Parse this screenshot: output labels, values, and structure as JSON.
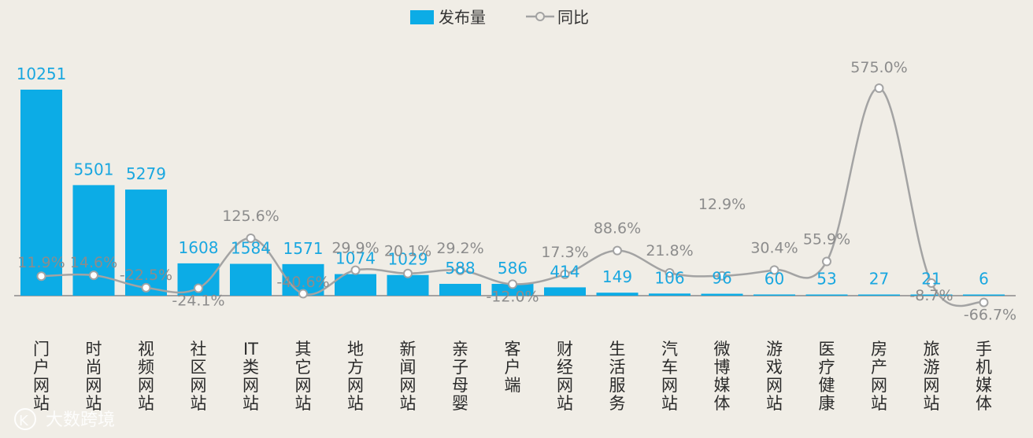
{
  "chart_data": {
    "type": "bar",
    "title": "",
    "categories": [
      "门户网站",
      "时尚网站",
      "视频网站",
      "社区网站",
      "IT类网站",
      "其它网站",
      "地方网站",
      "新闻网站",
      "亲子母婴",
      "客户端",
      "财经网站",
      "生活服务",
      "汽车网站",
      "微博媒体",
      "游戏网站",
      "医疗健康",
      "房产网站",
      "旅游网站",
      "手机媒体"
    ],
    "category_lines": [
      [
        "门",
        "户",
        "网",
        "站"
      ],
      [
        "时",
        "尚",
        "网",
        "站"
      ],
      [
        "视",
        "频",
        "网",
        "站"
      ],
      [
        "社",
        "区",
        "网",
        "站"
      ],
      [
        "IT",
        "类",
        "网",
        "站"
      ],
      [
        "其",
        "它",
        "网",
        "站"
      ],
      [
        "地",
        "方",
        "网",
        "站"
      ],
      [
        "新",
        "闻",
        "网",
        "站"
      ],
      [
        "亲",
        "子",
        "母",
        "婴"
      ],
      [
        "客",
        "户",
        "端"
      ],
      [
        "财",
        "经",
        "网",
        "站"
      ],
      [
        "生",
        "活",
        "服",
        "务"
      ],
      [
        "汽",
        "车",
        "网",
        "站"
      ],
      [
        "微",
        "博",
        "媒",
        "体"
      ],
      [
        "游",
        "戏",
        "网",
        "站"
      ],
      [
        "医",
        "疗",
        "健",
        "康"
      ],
      [
        "房",
        "产",
        "网",
        "站"
      ],
      [
        "旅",
        "游",
        "网",
        "站"
      ],
      [
        "手",
        "机",
        "媒",
        "体"
      ]
    ],
    "series": [
      {
        "name": "发布量",
        "kind": "bar",
        "color": "#0cace6",
        "values": [
          10251,
          5501,
          5279,
          1608,
          1584,
          1571,
          1074,
          1029,
          588,
          586,
          414,
          149,
          106,
          96,
          60,
          53,
          27,
          21,
          6
        ],
        "labels": [
          "10251",
          "5501",
          "5279",
          "1608",
          "1584",
          "1571",
          "1074",
          "1029",
          "588",
          "586",
          "414",
          "149",
          "106",
          "96",
          "60",
          "53",
          "27",
          "21",
          "6"
        ]
      },
      {
        "name": "同比",
        "kind": "line",
        "color": "#a3a3a3",
        "values": [
          11.9,
          14.6,
          -22.5,
          -24.1,
          125.6,
          -40.6,
          29.9,
          20.1,
          29.2,
          -12.0,
          17.3,
          88.6,
          21.8,
          12.9,
          30.4,
          55.9,
          575.0,
          -8.7,
          -66.7
        ],
        "labels": [
          "11.9%",
          "14.6%",
          "-22.5%",
          "-24.1%",
          "125.6%",
          "-40.6%",
          "29.9%",
          "20.1%",
          "29.2%",
          "-12.0%",
          "17.3%",
          "88.6%",
          "21.8%",
          "12.9%",
          "30.4%",
          "55.9%",
          "575.0%",
          "-8.7%",
          "-66.7%"
        ]
      }
    ],
    "line_points_y": [
      11.9,
      14.6,
      -22.5,
      -24.1,
      125.6,
      -40.6,
      29.9,
      20.1,
      29.2,
      -12.0,
      17.3,
      88.6,
      21.8,
      12.9,
      30.4,
      55.9,
      575.0,
      -8.7,
      -66.7
    ],
    "legend": {
      "position": "top-center",
      "items": [
        "发布量",
        "同比"
      ]
    },
    "ylim_bar": [
      0,
      11000
    ],
    "ylim_line": [
      -70,
      580
    ],
    "grid": false
  },
  "watermark": {
    "text": "大数跨境",
    "logo_text": "K"
  }
}
